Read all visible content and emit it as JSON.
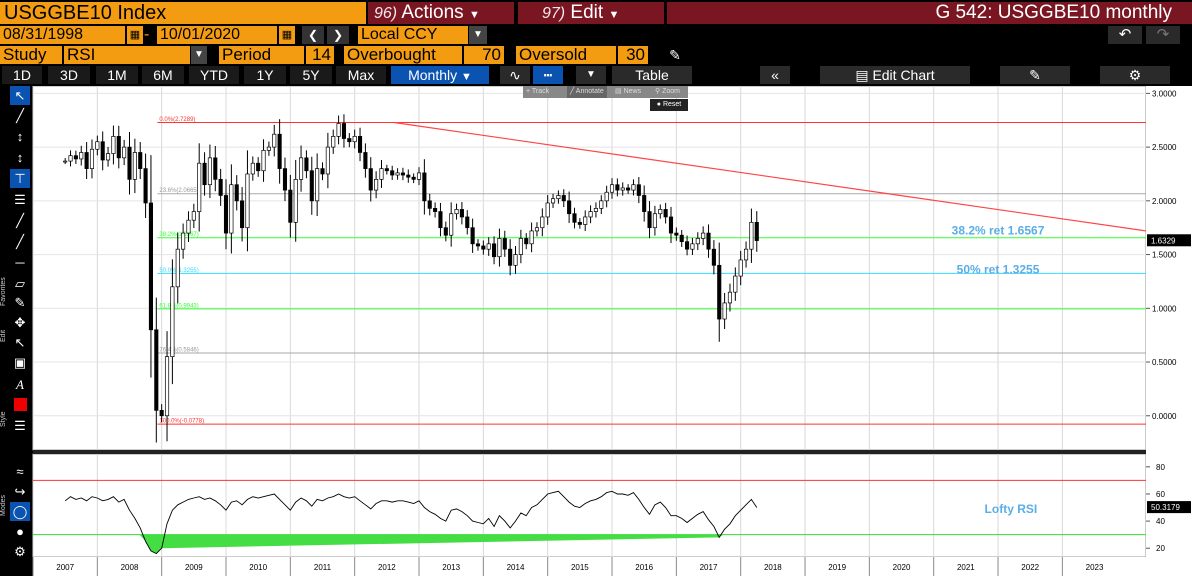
{
  "header": {
    "ticker": "USGGBE10 Index",
    "actions_num": "96)",
    "actions_label": "Actions",
    "edit_num": "97)",
    "edit_label": "Edit",
    "chart_title": "G 542: USGGBE10 monthly"
  },
  "dates": {
    "start": "08/31/1998",
    "end": "10/01/2020",
    "currency": "Local CCY"
  },
  "study": {
    "study_label": "Study",
    "study_value": "RSI",
    "period_label": "Period",
    "period_value": "14",
    "overbought_label": "Overbought",
    "overbought_value": "70",
    "oversold_label": "Oversold",
    "oversold_value": "30"
  },
  "toolbar": {
    "ranges": [
      "1D",
      "3D",
      "1M",
      "6M",
      "YTD",
      "1Y",
      "5Y",
      "Max"
    ],
    "frequency": "Monthly",
    "table_label": "Table",
    "edit_chart_label": "Edit Chart"
  },
  "popup": {
    "track": "Track",
    "annotate": "Annotate",
    "news": "News",
    "zoom": "Zoom",
    "reset": "Reset"
  },
  "left_labels": {
    "favorites": "Favorites",
    "edit": "Edit",
    "style": "Style",
    "modes": "Modes"
  },
  "chart_data": [
    {
      "type": "candlestick",
      "x_years": [
        "2007",
        "2008",
        "2009",
        "2010",
        "2011",
        "2012",
        "2013",
        "2014",
        "2015",
        "2016",
        "2017",
        "2018",
        "2019",
        "2020",
        "2021",
        "2022",
        "2023"
      ],
      "y_ticks": [
        "3.0000",
        "2.5000",
        "2.0000",
        "1.5000",
        "1.0000",
        "0.5000",
        "0.0000"
      ],
      "ylim": [
        -0.3,
        3.05
      ],
      "last_value": "1.6329",
      "series_close": [
        2.37,
        2.42,
        2.39,
        2.45,
        2.3,
        2.48,
        2.55,
        2.38,
        2.44,
        2.6,
        2.4,
        2.5,
        2.2,
        2.45,
        2.3,
        1.98,
        0.8,
        0.05,
        0.0,
        0.55,
        1.2,
        1.55,
        1.7,
        1.82,
        1.9,
        2.35,
        2.15,
        2.4,
        2.2,
        2.05,
        1.7,
        2.15,
        2.0,
        1.75,
        2.25,
        2.35,
        2.28,
        2.47,
        2.5,
        2.62,
        2.3,
        2.1,
        1.8,
        2.2,
        2.4,
        2.28,
        2.0,
        2.3,
        2.25,
        2.5,
        2.6,
        2.72,
        2.58,
        2.55,
        2.6,
        2.45,
        2.3,
        2.1,
        2.2,
        2.3,
        2.28,
        2.24,
        2.26,
        2.24,
        2.22,
        2.2,
        2.26,
        2.0,
        1.93,
        1.9,
        1.75,
        1.68,
        1.88,
        1.92,
        1.85,
        1.75,
        1.6,
        1.58,
        1.55,
        1.6,
        1.48,
        1.65,
        1.55,
        1.4,
        1.5,
        1.65,
        1.6,
        1.72,
        1.75,
        1.85,
        1.98,
        2.02,
        2.05,
        2.0,
        1.88,
        1.8,
        1.78,
        1.85,
        1.9,
        1.93,
        2.0,
        2.08,
        2.15,
        2.1,
        2.12,
        2.1,
        2.15,
        2.05,
        1.9,
        1.75,
        1.88,
        1.92,
        1.85,
        1.7,
        1.68,
        1.62,
        1.55,
        1.6,
        1.65,
        1.7,
        1.55,
        1.4,
        0.9,
        1.05,
        1.15,
        1.3,
        1.45,
        1.55,
        1.8,
        1.63
      ],
      "annotations": [
        {
          "text": "38.2% ret 1.6567",
          "y": 1.6567
        },
        {
          "text": "50% ret 1.3255",
          "y": 1.3255
        }
      ],
      "fib_levels": [
        {
          "label": "0.0%(2.7289)",
          "value": 2.7289,
          "color": "#ff3333"
        },
        {
          "label": "23.6%(2.0665)",
          "value": 2.0665,
          "color": "#aaaaaa"
        },
        {
          "label": "38.2%(1.6567)",
          "value": 1.6567,
          "color": "#33ff33"
        },
        {
          "label": "50.0%(1.3255)",
          "value": 1.3255,
          "color": "#33ddff"
        },
        {
          "label": "61.8%(0.9943)",
          "value": 0.9943,
          "color": "#33ff33"
        },
        {
          "label": "76.4%(0.5846)",
          "value": 0.5846,
          "color": "#aaaaaa"
        },
        {
          "label": "100.0%(-0.0778)",
          "value": -0.0778,
          "color": "#ff3333"
        }
      ],
      "trendline": {
        "from_year": 2012.1,
        "from_value": 2.73,
        "to_year": 2023.5,
        "to_value": 1.72
      }
    },
    {
      "type": "line",
      "name": "RSI",
      "y_ticks": [
        "80",
        "60",
        "40",
        "20"
      ],
      "ylim": [
        15,
        88
      ],
      "overbought": 70,
      "oversold": 30,
      "last_value": "50.3179",
      "annotation": "Lofty RSI",
      "values": [
        55,
        58,
        56,
        57,
        55,
        58,
        57,
        55,
        56,
        58,
        54,
        56,
        48,
        42,
        35,
        25,
        18,
        16,
        20,
        38,
        48,
        52,
        54,
        56,
        57,
        58,
        56,
        57,
        55,
        52,
        48,
        54,
        55,
        52,
        56,
        58,
        57,
        58,
        59,
        60,
        56,
        52,
        48,
        54,
        57,
        55,
        51,
        56,
        55,
        57,
        58,
        60,
        58,
        57,
        58,
        55,
        52,
        49,
        53,
        55,
        55,
        54,
        55,
        55,
        54,
        53,
        55,
        50,
        47,
        45,
        42,
        40,
        48,
        49,
        47,
        44,
        40,
        39,
        38,
        42,
        36,
        44,
        40,
        35,
        40,
        46,
        44,
        50,
        52,
        56,
        60,
        61,
        62,
        58,
        54,
        51,
        50,
        53,
        55,
        56,
        58,
        61,
        62,
        60,
        60,
        59,
        61,
        56,
        50,
        45,
        52,
        54,
        50,
        44,
        44,
        42,
        39,
        42,
        45,
        47,
        41,
        36,
        28,
        34,
        38,
        44,
        48,
        52,
        56,
        50
      ]
    }
  ],
  "colors": {
    "accent": "#f39c12",
    "header_red": "#7a1622",
    "active_blue": "#0a53b0",
    "plot_bg": "#ffffff"
  }
}
